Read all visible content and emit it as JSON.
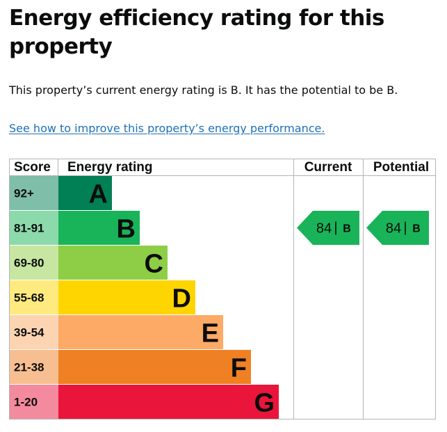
{
  "page": {
    "title": "Energy efficiency rating for this property",
    "summary": "This property’s current energy rating is B. It has the potential to be B.",
    "improve_link": "See how to improve this property’s energy performance."
  },
  "chart_headers": {
    "score": "Score",
    "rating": "Energy rating",
    "current": "Current",
    "potential": "Potential"
  },
  "bands": [
    {
      "score": "92+",
      "letter": "A",
      "color": "#008054",
      "score_bg": "#7fbfa9"
    },
    {
      "score": "81-91",
      "letter": "B",
      "color": "#19b459",
      "score_bg": "#8cd9ac"
    },
    {
      "score": "69-80",
      "letter": "C",
      "color": "#8dce46",
      "score_bg": "#c6e6a2"
    },
    {
      "score": "55-68",
      "letter": "D",
      "color": "#ffd500",
      "score_bg": "#ffea7f"
    },
    {
      "score": "39-54",
      "letter": "E",
      "color": "#fcaa65",
      "score_bg": "#fdd4b2"
    },
    {
      "score": "21-38",
      "letter": "F",
      "color": "#ef8023",
      "score_bg": "#f7bf91"
    },
    {
      "score": "1-20",
      "letter": "G",
      "color": "#e9153b",
      "score_bg": "#f48a9d"
    }
  ],
  "current": {
    "score": "84",
    "separator": "|",
    "letter": "B",
    "band_index": 1,
    "color": "#19b459"
  },
  "potential": {
    "score": "84",
    "separator": "|",
    "letter": "B",
    "band_index": 1,
    "color": "#19b459"
  },
  "colors": {
    "border": "#b1b4b6",
    "link": "#1d70b8",
    "text": "#0b0c0c"
  }
}
